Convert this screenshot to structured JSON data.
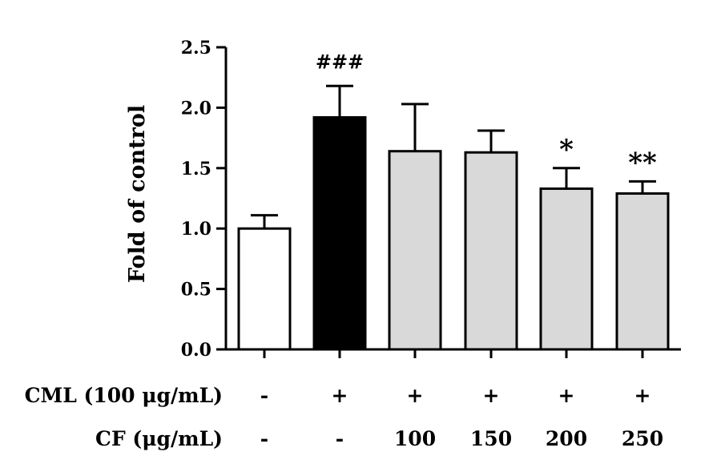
{
  "chart_data": {
    "type": "bar",
    "ylabel": "Fold of control",
    "xlabel": "",
    "ylim": [
      0,
      2.5
    ],
    "yticks": [
      "0.0",
      "0.5",
      "1.0",
      "1.5",
      "2.0",
      "2.5"
    ],
    "categories": [
      "Control",
      "CML",
      "CML+CF100",
      "CML+CF150",
      "CML+CF200",
      "CML+CF250"
    ],
    "values": [
      1.0,
      1.92,
      1.64,
      1.63,
      1.33,
      1.29
    ],
    "errors": [
      0.11,
      0.26,
      0.39,
      0.18,
      0.17,
      0.1
    ],
    "bar_colors": [
      "#ffffff",
      "#000000",
      "#d9d9d9",
      "#d9d9d9",
      "#d9d9d9",
      "#d9d9d9"
    ],
    "annotations": [
      "",
      "###",
      "",
      "",
      "*",
      "**"
    ],
    "condition_rows": [
      {
        "label": "CML (100 μg/mL)",
        "values": [
          "-",
          "+",
          "+",
          "+",
          "+",
          "+"
        ]
      },
      {
        "label": "CF (μg/mL)",
        "values": [
          "-",
          "-",
          "100",
          "150",
          "200",
          "250"
        ]
      }
    ]
  }
}
